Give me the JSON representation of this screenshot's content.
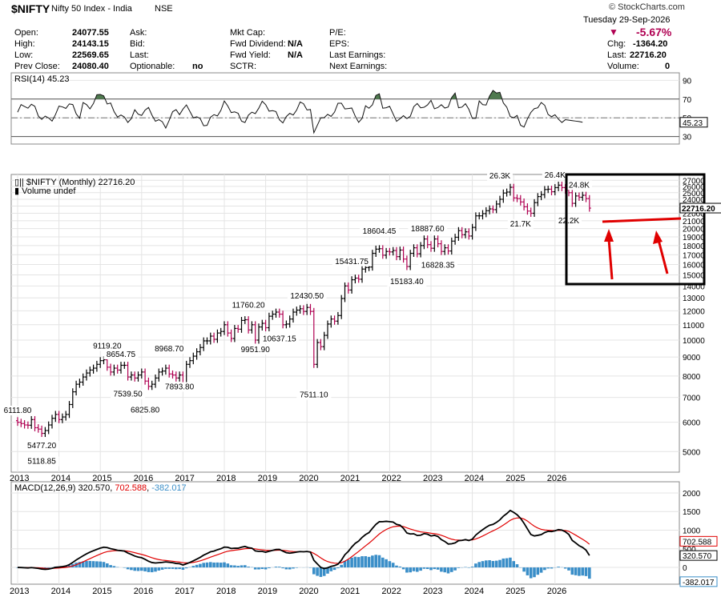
{
  "header": {
    "symbol": "$NIFTY",
    "name": "Nifty 50 Index - India",
    "exchange": "NSE",
    "brand": "© StockCharts.com",
    "date": "Tuesday 29-Sep-2026",
    "quote": [
      {
        "label": "Open:",
        "value": "24077.55"
      },
      {
        "label": "High:",
        "value": "24143.15"
      },
      {
        "label": "Low:",
        "value": "22569.65"
      },
      {
        "label": "Prev Close:",
        "value": "24080.40"
      }
    ],
    "col2": [
      {
        "label": "Ask:",
        "value": ""
      },
      {
        "label": "Bid:",
        "value": ""
      },
      {
        "label": "Last:",
        "value": ""
      },
      {
        "label": "Optionable:",
        "value": "no"
      }
    ],
    "col3": [
      {
        "label": "Mkt Cap:",
        "value": ""
      },
      {
        "label": "Fwd Dividend:",
        "value": "N/A"
      },
      {
        "label": "Fwd Yield:",
        "value": "N/A"
      },
      {
        "label": "SCTR:",
        "value": ""
      }
    ],
    "col4": [
      {
        "label": "P/E:"
      },
      {
        "label": "EPS:"
      },
      {
        "label": "Last Earnings:"
      },
      {
        "label": "Next Earnings:"
      }
    ],
    "pct_change": "-5.67%",
    "right": [
      {
        "label": "Chg:",
        "value": "-1364.20"
      },
      {
        "label": "Last:",
        "value": "22716.20"
      },
      {
        "label": "Volume:",
        "value": "0"
      }
    ]
  },
  "colors": {
    "up": "#000000",
    "down": "#b00052",
    "rsi_fill": "#4f7a4f",
    "macd_line": "#000000",
    "signal_line": "#e00000",
    "hist": "#3a8ec8",
    "annotation": "#e00000"
  },
  "chart_data": [
    {
      "type": "line",
      "title": "RSI(14) 45.23",
      "series": [
        {
          "name": "RSI(14)",
          "last_value": 45.23
        }
      ],
      "yticks": [
        30,
        50,
        70,
        90
      ],
      "levels": [
        30,
        70
      ],
      "ylim": [
        22,
        98
      ],
      "value_label": "45.23"
    },
    {
      "type": "candlestick",
      "title": "$NIFTY (Monthly) 22716.20",
      "subtitle": "Volume undef",
      "y_scale": "log",
      "ylim": [
        4400,
        28000
      ],
      "yticks": [
        5000,
        6000,
        7000,
        8000,
        9000,
        10000,
        11000,
        12000,
        13000,
        14000,
        15000,
        16000,
        17000,
        18000,
        19000,
        20000,
        21000,
        22000,
        23000,
        24000,
        25000,
        26000,
        27000
      ],
      "xticks": [
        "2013",
        "2014",
        "2015",
        "2016",
        "2017",
        "2018",
        "2019",
        "2020",
        "2021",
        "2022",
        "2023",
        "2024",
        "2025",
        "2026"
      ],
      "last_label": "22716.20",
      "closes": [
        6000,
        5950,
        5900,
        5890,
        6100,
        5800,
        5750,
        5600,
        5700,
        5900,
        6150,
        6300,
        6100,
        6200,
        6300,
        6700,
        7250,
        7600,
        7700,
        7950,
        8150,
        8300,
        8400,
        8600,
        8800,
        8850,
        8450,
        8200,
        8400,
        8300,
        8550,
        8550,
        7950,
        8050,
        7900,
        8050,
        8200,
        7750,
        7500,
        7600,
        7900,
        8200,
        8250,
        8400,
        8100,
        8050,
        7900,
        8050,
        7600,
        8600,
        8800,
        9050,
        9300,
        9550,
        9950,
        9950,
        10250,
        10050,
        10450,
        10550,
        11000,
        10450,
        10100,
        10750,
        10700,
        11300,
        11350,
        10650,
        11000,
        10000,
        10850,
        11100,
        10800,
        11600,
        11750,
        11900,
        11750,
        11000,
        11050,
        11400,
        11900,
        12050,
        12150,
        11950,
        12250,
        11950,
        8600,
        9850,
        9600,
        10300,
        11050,
        11400,
        11250,
        11650,
        12950,
        14000,
        13650,
        14550,
        14700,
        14600,
        15550,
        15700,
        15750,
        17150,
        17600,
        17650,
        16950,
        17350,
        17300,
        17450,
        16800,
        17500,
        16550,
        15800,
        17150,
        17750,
        17100,
        18000,
        18750,
        18100,
        17700,
        18750,
        18200,
        17350,
        17750,
        17400,
        18500,
        18950,
        19750,
        19250,
        19600,
        19100,
        20150,
        21650,
        21650,
        21950,
        22350,
        22600,
        22500,
        23300,
        24000,
        24950,
        25100,
        25850,
        24200,
        24100,
        23600,
        22900,
        22300,
        22000,
        23500,
        24400,
        24700,
        25500,
        25550,
        25150,
        25800,
        26200,
        25800,
        25400,
        25000,
        23400,
        24500,
        24300,
        24600,
        24100,
        22716
      ],
      "labels": [
        {
          "text": "6111.80",
          "x": "2013-01",
          "y": 6111.8,
          "pos": "above"
        },
        {
          "text": "5477.20",
          "x": "2013-08",
          "y": 5477.2,
          "pos": "below"
        },
        {
          "text": "5118.85",
          "x": "2013-08",
          "y": 5118.85,
          "pos": "below2"
        },
        {
          "text": "9119.20",
          "x": "2015-03",
          "y": 9119.2,
          "pos": "above"
        },
        {
          "text": "8654.75",
          "x": "2015-07",
          "y": 8654.75,
          "pos": "above"
        },
        {
          "text": "7539.50",
          "x": "2015-09",
          "y": 7539.5,
          "pos": "below"
        },
        {
          "text": "6825.80",
          "x": "2016-02",
          "y": 6825.8,
          "pos": "below"
        },
        {
          "text": "8968.70",
          "x": "2016-09",
          "y": 8968.7,
          "pos": "above"
        },
        {
          "text": "7893.80",
          "x": "2016-12",
          "y": 7893.8,
          "pos": "below"
        },
        {
          "text": "11760.20",
          "x": "2018-08",
          "y": 11760.2,
          "pos": "above"
        },
        {
          "text": "9951.90",
          "x": "2018-10",
          "y": 9951.9,
          "pos": "below"
        },
        {
          "text": "10637.15",
          "x": "2019-05",
          "y": 10637.15,
          "pos": "below"
        },
        {
          "text": "12430.50",
          "x": "2020-01",
          "y": 12430.5,
          "pos": "above"
        },
        {
          "text": "7511.10",
          "x": "2020-03",
          "y": 7511.1,
          "pos": "below"
        },
        {
          "text": "15431.75",
          "x": "2021-02",
          "y": 15431.75,
          "pos": "above"
        },
        {
          "text": "18604.45",
          "x": "2021-10",
          "y": 18604.45,
          "pos": "above"
        },
        {
          "text": "15183.40",
          "x": "2022-06",
          "y": 15183.4,
          "pos": "below"
        },
        {
          "text": "18887.60",
          "x": "2022-12",
          "y": 18887.6,
          "pos": "above"
        },
        {
          "text": "16828.35",
          "x": "2023-03",
          "y": 16828.35,
          "pos": "below"
        },
        {
          "text": "26.3K",
          "x": "2024-09",
          "y": 26277,
          "pos": "above"
        },
        {
          "text": "21.7K",
          "x": "2025-03",
          "y": 21743,
          "pos": "below"
        },
        {
          "text": "26.4K",
          "x": "2026-01",
          "y": 26373,
          "pos": "above"
        },
        {
          "text": "22.2K",
          "x": "2026-05",
          "y": 22182,
          "pos": "below"
        },
        {
          "text": "24.8K",
          "x": "2026-08",
          "y": 24800,
          "pos": "above"
        }
      ],
      "support_level": 21900
    },
    {
      "type": "line",
      "title": "MACD(12,26,9) 320.570, 702.588, -382.017",
      "title_parts": [
        {
          "text": "MACD(12,26,9) 320.570",
          "color": "#000000"
        },
        {
          "text": ", ",
          "color": "#000000"
        },
        {
          "text": "702.588",
          "color": "#e00000"
        },
        {
          "text": ", ",
          "color": "#000000"
        },
        {
          "text": "-382.017",
          "color": "#3a8ec8"
        }
      ],
      "ylim": [
        -450,
        2300
      ],
      "yticks": [
        0,
        500,
        1000,
        1500,
        2000
      ],
      "xticks": [
        "2013",
        "2014",
        "2015",
        "2016",
        "2017",
        "2018",
        "2019",
        "2020",
        "2021",
        "2022",
        "2023",
        "2024",
        "2025",
        "2026"
      ],
      "series": [
        {
          "name": "MACD",
          "last_value": 320.57
        },
        {
          "name": "Signal",
          "last_value": 702.588
        },
        {
          "name": "Histogram",
          "last_value": -382.017
        }
      ],
      "value_labels": [
        "702.588",
        "320.570",
        "-382.017"
      ]
    }
  ]
}
